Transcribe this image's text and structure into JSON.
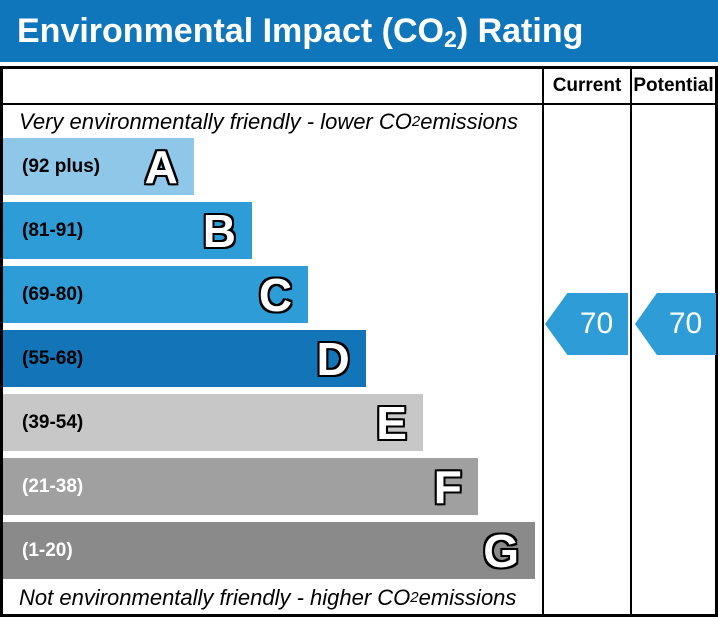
{
  "title": {
    "prefix": "Environmental Impact (CO",
    "sub": "2",
    "suffix": ") Rating"
  },
  "header": {
    "current": "Current",
    "potential": "Potential"
  },
  "captions": {
    "top_prefix": "Very environmentally friendly - lower CO",
    "top_sub": "2",
    "top_suffix": " emissions",
    "bottom_prefix": "Not environmentally friendly - higher CO",
    "bottom_sub": "2",
    "bottom_suffix": " emissions"
  },
  "colors": {
    "title_bar": "#0f76bc",
    "arrow": "#2e9cd6",
    "border": "#000000"
  },
  "chart_data": {
    "type": "bar",
    "title": "Environmental Impact (CO2) Rating",
    "columns": [
      "Current",
      "Potential"
    ],
    "bands": [
      {
        "letter": "A",
        "range": "(92 plus)",
        "min": 92,
        "max": 100,
        "color": "#8fc7e9",
        "label_color": "#000000",
        "width_pct": 35.4
      },
      {
        "letter": "B",
        "range": "(81-91)",
        "min": 81,
        "max": 91,
        "color": "#2e9cd6",
        "label_color": "#000000",
        "width_pct": 46.2
      },
      {
        "letter": "C",
        "range": "(69-80)",
        "min": 69,
        "max": 80,
        "color": "#2e9cd6",
        "label_color": "#000000",
        "width_pct": 56.6
      },
      {
        "letter": "D",
        "range": "(55-68)",
        "min": 55,
        "max": 68,
        "color": "#1474b8",
        "label_color": "#000000",
        "width_pct": 67.3
      },
      {
        "letter": "E",
        "range": "(39-54)",
        "min": 39,
        "max": 54,
        "color": "#c7c7c7",
        "label_color": "#000000",
        "width_pct": 77.9
      },
      {
        "letter": "F",
        "range": "(21-38)",
        "min": 21,
        "max": 38,
        "color": "#a0a0a0",
        "label_color": "#ffffff",
        "width_pct": 88.1
      },
      {
        "letter": "G",
        "range": "(1-20)",
        "min": 1,
        "max": 20,
        "color": "#8a8a8a",
        "label_color": "#ffffff",
        "width_pct": 98.7
      }
    ],
    "current": {
      "value": 70,
      "band": "C"
    },
    "potential": {
      "value": 70,
      "band": "C"
    }
  }
}
